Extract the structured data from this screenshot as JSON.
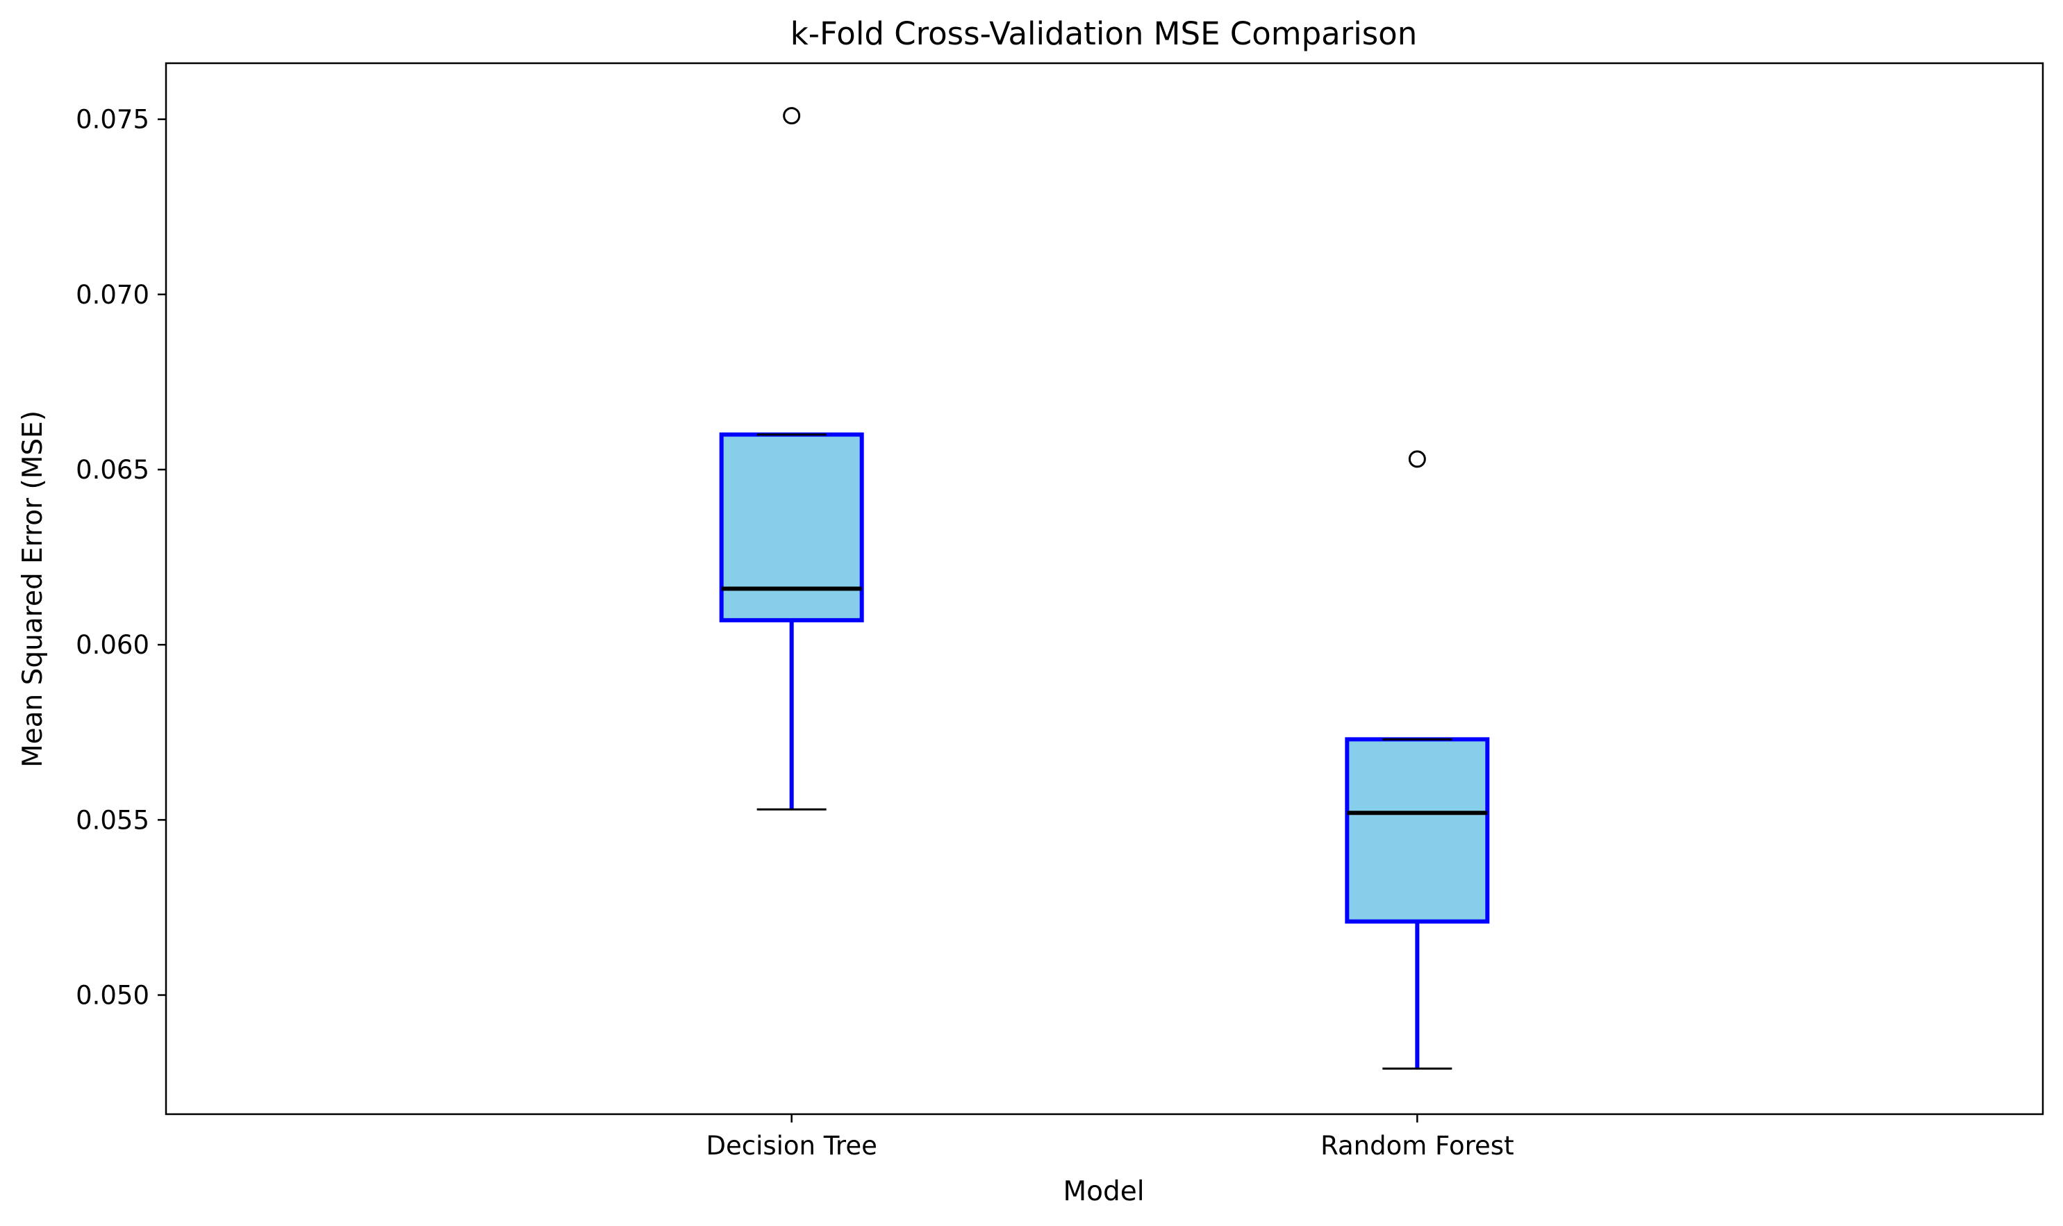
{
  "chart_data": {
    "type": "boxplot",
    "title": "k-Fold Cross-Validation MSE Comparison",
    "xlabel": "Model",
    "ylabel": "Mean Squared Error (MSE)",
    "categories": [
      "Decision Tree",
      "Random Forest"
    ],
    "ylim": [
      0.0466,
      0.0766
    ],
    "yticks": [
      0.05,
      0.055,
      0.06,
      0.065,
      0.07,
      0.075
    ],
    "ytick_labels": [
      "0.050",
      "0.055",
      "0.060",
      "0.065",
      "0.070",
      "0.075"
    ],
    "grid": false,
    "legend": "none",
    "boxes": [
      {
        "name": "Decision Tree",
        "whisker_low": 0.0553,
        "q1": 0.0607,
        "median": 0.0616,
        "q3": 0.066,
        "whisker_high": 0.066,
        "outliers": [
          0.0751
        ]
      },
      {
        "name": "Random Forest",
        "whisker_low": 0.0479,
        "q1": 0.0521,
        "median": 0.0552,
        "q3": 0.0573,
        "whisker_high": 0.0573,
        "outliers": [
          0.0653
        ]
      }
    ],
    "colors": {
      "box_fill": "#87ceeb",
      "box_edge": "#0000ff",
      "whisker": "#0000ff",
      "cap": "#000000",
      "median": "#000000",
      "outlier_edge": "#000000"
    }
  }
}
